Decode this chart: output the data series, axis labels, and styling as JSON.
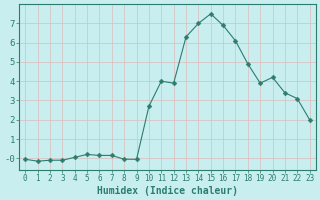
{
  "x": [
    0,
    1,
    2,
    3,
    4,
    5,
    6,
    7,
    8,
    9,
    10,
    11,
    12,
    13,
    14,
    15,
    16,
    17,
    18,
    19,
    20,
    21,
    22,
    23
  ],
  "y": [
    -0.05,
    -0.15,
    -0.1,
    -0.1,
    0.05,
    0.2,
    0.15,
    0.15,
    -0.05,
    -0.05,
    2.7,
    4.0,
    3.9,
    6.3,
    7.0,
    7.5,
    6.9,
    6.1,
    4.9,
    3.9,
    4.2,
    3.4,
    3.1,
    2.0
  ],
  "line_color": "#2d7d6e",
  "marker": "D",
  "marker_size": 2.5,
  "bg_color": "#c8eef0",
  "grid_color": "#ddbcbc",
  "xlabel": "Humidex (Indice chaleur)",
  "xlabel_fontsize": 7,
  "tick_fontsize": 6.5,
  "ylim": [
    -0.6,
    8.0
  ],
  "xlim": [
    -0.5,
    23.5
  ],
  "yticks": [
    0,
    1,
    2,
    3,
    4,
    5,
    6,
    7
  ],
  "xticks": [
    0,
    1,
    2,
    3,
    4,
    5,
    6,
    7,
    8,
    9,
    10,
    11,
    12,
    13,
    14,
    15,
    16,
    17,
    18,
    19,
    20,
    21,
    22,
    23
  ]
}
